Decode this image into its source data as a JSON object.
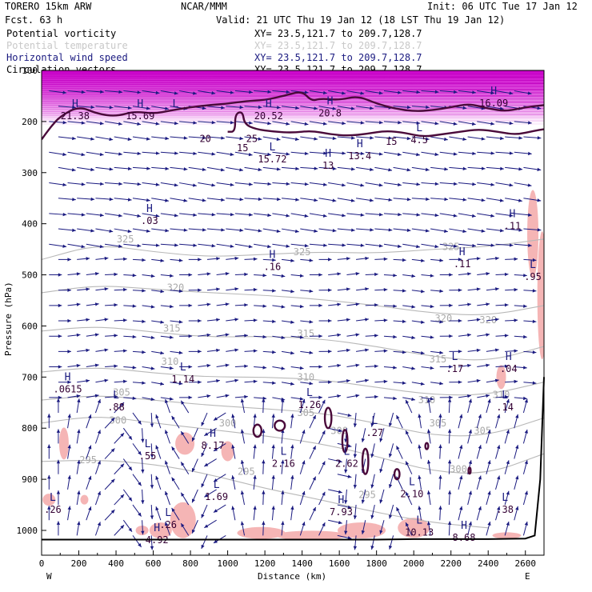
{
  "header": {
    "left": [
      "TORERO  15km ARW",
      "Fcst.   63 h"
    ],
    "center": "NCAR/MMM",
    "init": "Init: 06 UTC Tue 17 Jan 12",
    "valid": "Valid: 21 UTC Thu 19 Jan 12 (18 LST Thu 19 Jan 12)",
    "fields": [
      {
        "name": "Potential vorticity",
        "xy": "XY=  23.5,121.7 to 209.7,128.7",
        "color": "#000000"
      },
      {
        "name": "Potential temperature",
        "xy": "XY=  23.5,121.7 to 209.7,128.7",
        "color": "#c8c8c8"
      },
      {
        "name": "Horizontal wind speed",
        "xy": "XY=  23.5,121.7 to 209.7,128.7",
        "color": "#1a1a80"
      },
      {
        "name": "Circulation vectors",
        "xy": "XY=  23.5,121.7 to 209.7,128.7",
        "color": "#000000"
      }
    ]
  },
  "chart_data": {
    "type": "cross-section",
    "xlabel": "Distance (km)",
    "ylabel": "Pressure (hPa)",
    "xlim": [
      0,
      2700
    ],
    "ylim": [
      1050,
      100
    ],
    "xticks": [
      0,
      200,
      400,
      600,
      800,
      1000,
      1200,
      1400,
      1600,
      1800,
      2000,
      2200,
      2400,
      2600
    ],
    "yticks": [
      100,
      200,
      300,
      400,
      500,
      600,
      700,
      800,
      900,
      1000
    ],
    "ytick_labels": [
      "100",
      "200",
      "300",
      "400",
      "500",
      "600",
      "700",
      "800",
      "900",
      "1000"
    ],
    "end_labels": {
      "left": "W",
      "right": "E"
    },
    "theta_contours": [
      {
        "value": "325",
        "points": [
          [
            0,
            470
          ],
          [
            300,
            440
          ],
          [
            600,
            455
          ],
          [
            900,
            465
          ],
          [
            1200,
            460
          ],
          [
            1500,
            455
          ],
          [
            1800,
            458
          ],
          [
            2100,
            450
          ],
          [
            2400,
            445
          ],
          [
            2700,
            430
          ]
        ]
      },
      {
        "value": "320",
        "points": [
          [
            0,
            535
          ],
          [
            300,
            520
          ],
          [
            600,
            528
          ],
          [
            900,
            535
          ],
          [
            1200,
            540
          ],
          [
            1500,
            548
          ],
          [
            1800,
            560
          ],
          [
            2100,
            575
          ],
          [
            2400,
            580
          ],
          [
            2700,
            560
          ]
        ]
      },
      {
        "value": "315",
        "points": [
          [
            0,
            610
          ],
          [
            300,
            600
          ],
          [
            600,
            612
          ],
          [
            900,
            622
          ],
          [
            1200,
            620
          ],
          [
            1500,
            625
          ],
          [
            1800,
            640
          ],
          [
            2100,
            660
          ],
          [
            2400,
            670
          ],
          [
            2700,
            640
          ]
        ]
      },
      {
        "value": "310",
        "points": [
          [
            0,
            690
          ],
          [
            300,
            680
          ],
          [
            600,
            692
          ],
          [
            900,
            700
          ],
          [
            1200,
            700
          ],
          [
            1500,
            705
          ],
          [
            1800,
            720
          ],
          [
            2100,
            735
          ],
          [
            2400,
            735
          ],
          [
            2700,
            710
          ]
        ]
      },
      {
        "value": "305",
        "points": [
          [
            0,
            745
          ],
          [
            300,
            735
          ],
          [
            600,
            745
          ],
          [
            900,
            755
          ],
          [
            1200,
            762
          ],
          [
            1500,
            770
          ],
          [
            1800,
            790
          ],
          [
            2100,
            815
          ],
          [
            2400,
            815
          ],
          [
            2700,
            780
          ]
        ]
      },
      {
        "value": "300",
        "points": [
          [
            0,
            790
          ],
          [
            300,
            775
          ],
          [
            600,
            790
          ],
          [
            900,
            802
          ],
          [
            1200,
            815
          ],
          [
            1500,
            830
          ],
          [
            1800,
            855
          ],
          [
            2100,
            885
          ],
          [
            2400,
            890
          ],
          [
            2700,
            850
          ]
        ]
      },
      {
        "value": "295",
        "points": [
          [
            0,
            865
          ],
          [
            300,
            862
          ],
          [
            600,
            870
          ],
          [
            900,
            890
          ],
          [
            1200,
            918
          ],
          [
            1500,
            940
          ],
          [
            1800,
            965
          ],
          [
            2100,
            985
          ],
          [
            2400,
            995
          ]
        ]
      }
    ],
    "theta_labels": [
      {
        "text": "325",
        "x": 450,
        "p": 430
      },
      {
        "text": "325",
        "x": 1400,
        "p": 455
      },
      {
        "text": "325",
        "x": 2200,
        "p": 445
      },
      {
        "text": "320",
        "x": 720,
        "p": 525
      },
      {
        "text": "320",
        "x": 2160,
        "p": 585
      },
      {
        "text": "320",
        "x": 2400,
        "p": 588
      },
      {
        "text": "315",
        "x": 700,
        "p": 605
      },
      {
        "text": "315",
        "x": 1420,
        "p": 615
      },
      {
        "text": "315",
        "x": 2130,
        "p": 665
      },
      {
        "text": "310",
        "x": 690,
        "p": 670
      },
      {
        "text": "310",
        "x": 1420,
        "p": 700
      },
      {
        "text": "310",
        "x": 2070,
        "p": 745
      },
      {
        "text": "310",
        "x": 2470,
        "p": 735
      },
      {
        "text": "305",
        "x": 430,
        "p": 730
      },
      {
        "text": "305",
        "x": 1420,
        "p": 770
      },
      {
        "text": "305",
        "x": 2130,
        "p": 790
      },
      {
        "text": "305",
        "x": 2370,
        "p": 805
      },
      {
        "text": "300",
        "x": 410,
        "p": 785
      },
      {
        "text": "300",
        "x": 1000,
        "p": 790
      },
      {
        "text": "300",
        "x": 1600,
        "p": 805
      },
      {
        "text": "300",
        "x": 2240,
        "p": 880
      },
      {
        "text": "295",
        "x": 250,
        "p": 862
      },
      {
        "text": "295",
        "x": 1100,
        "p": 885
      },
      {
        "text": "295",
        "x": 1750,
        "p": 930
      }
    ],
    "pv_contours": [
      [
        [
          0,
          235
        ],
        [
          50,
          210
        ],
        [
          100,
          190
        ],
        [
          200,
          170
        ],
        [
          300,
          185
        ],
        [
          400,
          190
        ],
        [
          500,
          180
        ],
        [
          600,
          185
        ],
        [
          700,
          178
        ],
        [
          800,
          172
        ],
        [
          900,
          168
        ],
        [
          1000,
          165
        ],
        [
          1100,
          160
        ],
        [
          1200,
          158
        ],
        [
          1300,
          150
        ],
        [
          1400,
          140
        ],
        [
          1450,
          160
        ],
        [
          1500,
          155
        ],
        [
          1600,
          158
        ],
        [
          1700,
          150
        ],
        [
          1800,
          165
        ],
        [
          1900,
          175
        ],
        [
          2000,
          180
        ],
        [
          2100,
          178
        ],
        [
          2200,
          172
        ],
        [
          2300,
          165
        ],
        [
          2400,
          175
        ],
        [
          2500,
          180
        ],
        [
          2600,
          172
        ],
        [
          2700,
          168
        ]
      ],
      [
        [
          1000,
          220
        ],
        [
          1040,
          220
        ],
        [
          1040,
          185
        ],
        [
          1080,
          180
        ],
        [
          1090,
          205
        ],
        [
          1150,
          215
        ],
        [
          1250,
          220
        ],
        [
          1350,
          222
        ],
        [
          1450,
          218
        ],
        [
          1550,
          225
        ],
        [
          1650,
          228
        ],
        [
          1750,
          224
        ],
        [
          1850,
          218
        ],
        [
          1950,
          222
        ],
        [
          2050,
          230
        ],
        [
          2150,
          225
        ],
        [
          2250,
          220
        ],
        [
          2350,
          215
        ],
        [
          2450,
          220
        ],
        [
          2550,
          226
        ],
        [
          2650,
          218
        ],
        [
          2700,
          215
        ]
      ]
    ],
    "pv_low_loops": [
      {
        "x": 1160,
        "p": 805,
        "rx": 22,
        "rp": 12
      },
      {
        "x": 1280,
        "p": 795,
        "rx": 28,
        "rp": 10
      },
      {
        "x": 1540,
        "p": 780,
        "rx": 18,
        "rp": 20
      },
      {
        "x": 1630,
        "p": 825,
        "rx": 14,
        "rp": 22
      },
      {
        "x": 1740,
        "p": 865,
        "rx": 16,
        "rp": 25
      },
      {
        "x": 1910,
        "p": 890,
        "rx": 14,
        "rp": 10
      },
      {
        "x": 2070,
        "p": 835,
        "rx": 8,
        "rp": 6
      },
      {
        "x": 2300,
        "p": 883,
        "rx": 6,
        "rp": 6
      }
    ],
    "surface_pressure": [
      [
        0,
        1018
      ],
      [
        200,
        1018
      ],
      [
        400,
        1018
      ],
      [
        600,
        1018
      ],
      [
        800,
        1018
      ],
      [
        1000,
        1018
      ],
      [
        1200,
        1018
      ],
      [
        1400,
        1018
      ],
      [
        1600,
        1018
      ],
      [
        1800,
        1018
      ],
      [
        2000,
        1017
      ],
      [
        2200,
        1017
      ],
      [
        2400,
        1017
      ],
      [
        2600,
        1016
      ],
      [
        2650,
        1010
      ],
      [
        2680,
        900
      ],
      [
        2700,
        700
      ]
    ],
    "wind_labels": [
      {
        "type": "H",
        "value": "21.38",
        "x": 180,
        "p": 175
      },
      {
        "type": "H",
        "value": "15.69",
        "x": 530,
        "p": 175
      },
      {
        "type": "L",
        "value": "",
        "x": 720,
        "p": 175
      },
      {
        "type": "H",
        "value": "20.52",
        "x": 1220,
        "p": 175
      },
      {
        "type": "H",
        "value": "20.8",
        "x": 1550,
        "p": 170
      },
      {
        "type": "H",
        "value": "16.09",
        "x": 2430,
        "p": 150
      },
      {
        "type": "",
        "value": "20",
        "x": 880,
        "p": 220
      },
      {
        "type": "",
        "value": "25",
        "x": 1130,
        "p": 220
      },
      {
        "type": "",
        "value": "15",
        "x": 1080,
        "p": 238
      },
      {
        "type": "L",
        "value": "15.72",
        "x": 1240,
        "p": 260
      },
      {
        "type": "H",
        "value": "13",
        "x": 1540,
        "p": 272
      },
      {
        "type": "H",
        "value": "13.4",
        "x": 1710,
        "p": 253
      },
      {
        "type": "",
        "value": "15",
        "x": 1880,
        "p": 225
      },
      {
        "type": "L",
        "value": "4.5",
        "x": 2030,
        "p": 222
      },
      {
        "type": "H",
        "value": ".03",
        "x": 580,
        "p": 380
      },
      {
        "type": "H",
        "value": ".11",
        "x": 2530,
        "p": 390
      },
      {
        "type": "H",
        "value": ".16",
        "x": 1240,
        "p": 470
      },
      {
        "type": "H",
        "value": ".11",
        "x": 2260,
        "p": 465
      },
      {
        "type": "L",
        "value": ".95",
        "x": 2640,
        "p": 490
      },
      {
        "type": "L",
        "value": "1.14",
        "x": 760,
        "p": 690
      },
      {
        "type": "L",
        "value": ".17",
        "x": 2220,
        "p": 670
      },
      {
        "type": "H",
        "value": ".04",
        "x": 2510,
        "p": 670
      },
      {
        "type": "H",
        "value": ".0615",
        "x": 140,
        "p": 710
      },
      {
        "type": "L",
        "value": ".88",
        "x": 400,
        "p": 745
      },
      {
        "type": "L",
        "value": "1.26",
        "x": 1440,
        "p": 740
      },
      {
        "type": "L",
        "value": ".14",
        "x": 2490,
        "p": 745
      },
      {
        "type": "L",
        "value": ".27",
        "x": 1790,
        "p": 795
      },
      {
        "type": "H",
        "value": "8.17",
        "x": 920,
        "p": 820
      },
      {
        "type": "L",
        "value": ".55",
        "x": 570,
        "p": 840
      },
      {
        "type": "L",
        "value": "2.16",
        "x": 1300,
        "p": 855
      },
      {
        "type": "L",
        "value": "2.62",
        "x": 1640,
        "p": 855
      },
      {
        "type": "L",
        "value": "2.10",
        "x": 1990,
        "p": 915
      },
      {
        "type": "L",
        "value": "1.69",
        "x": 940,
        "p": 920
      },
      {
        "type": "L",
        "value": ".38",
        "x": 2490,
        "p": 945
      },
      {
        "type": "L",
        "value": ".26",
        "x": 60,
        "p": 945
      },
      {
        "type": "H",
        "value": "7.93",
        "x": 1610,
        "p": 950
      },
      {
        "type": "L",
        "value": ".26",
        "x": 680,
        "p": 975
      },
      {
        "type": "L",
        "value": "10.13",
        "x": 2030,
        "p": 990
      },
      {
        "type": "H",
        "value": "8.68",
        "x": 2270,
        "p": 1000
      },
      {
        "type": "H",
        "value": "4.92",
        "x": 620,
        "p": 1005
      }
    ],
    "wind_vector_scale_note": "vectors point W-to-E aloft; strong ascent in low levels near 700 km, 1250 km and 2000 km"
  }
}
